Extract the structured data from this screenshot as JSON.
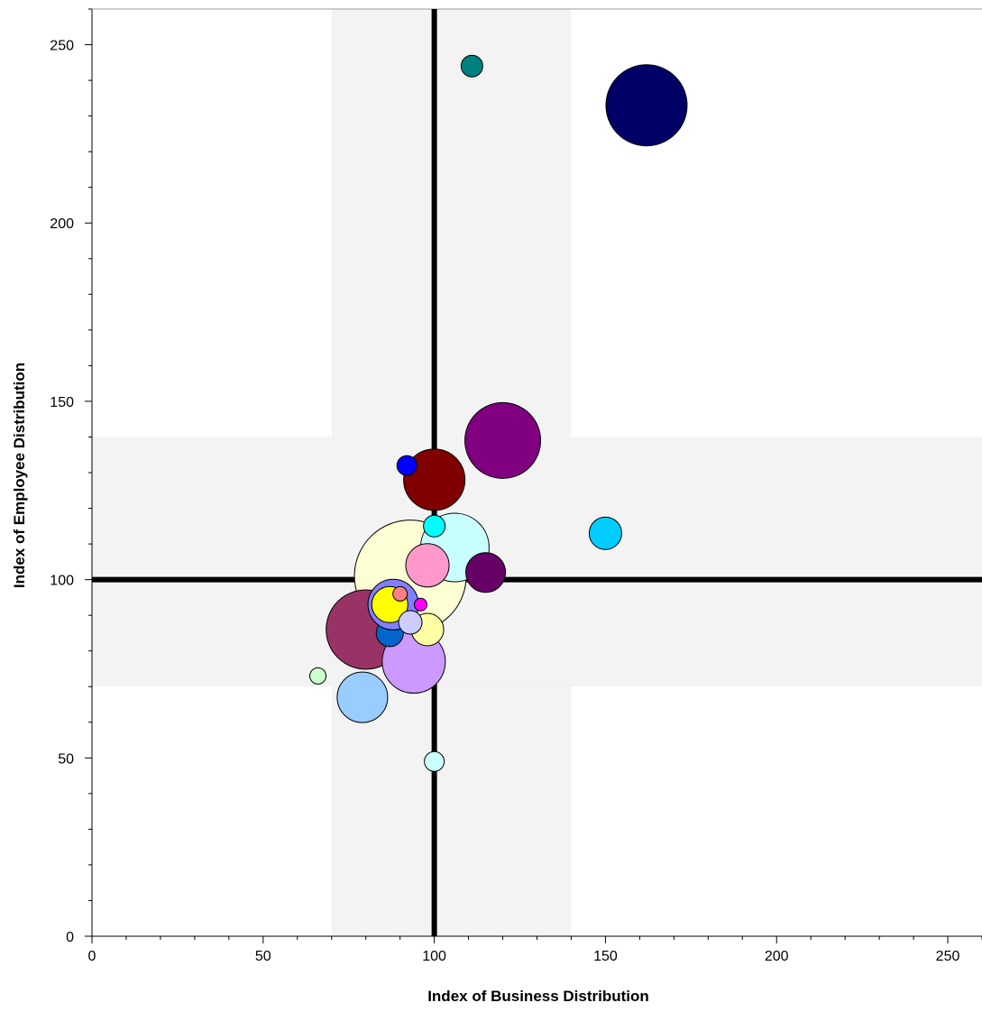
{
  "chart_data": {
    "type": "scatter",
    "variant": "bubble",
    "xlabel": "Index of Business Distribution",
    "ylabel": "Index of Employee Distribution",
    "xlim": [
      0,
      260
    ],
    "ylim": [
      0,
      260
    ],
    "x_ticks": [
      "0",
      "50",
      "100",
      "150",
      "200",
      "250"
    ],
    "y_ticks": [
      "0",
      "50",
      "100",
      "150",
      "200",
      "250"
    ],
    "reference_lines": {
      "x": 100,
      "y": 100
    },
    "shaded_band": {
      "low": 70,
      "high": 140,
      "color": "#f3f3f3"
    },
    "grid": false,
    "points": [
      {
        "x": 162,
        "y": 233,
        "size": 45,
        "color": "#000066"
      },
      {
        "x": 120,
        "y": 139,
        "size": 42,
        "color": "#800080"
      },
      {
        "x": 93,
        "y": 101,
        "size": 62,
        "color": "#fefed4"
      },
      {
        "x": 80,
        "y": 86,
        "size": 44,
        "color": "#993366"
      },
      {
        "x": 106,
        "y": 109,
        "size": 38,
        "color": "#c9fefe"
      },
      {
        "x": 100,
        "y": 128,
        "size": 34,
        "color": "#800000"
      },
      {
        "x": 94,
        "y": 77,
        "size": 35,
        "color": "#cc99ff"
      },
      {
        "x": 79,
        "y": 67,
        "size": 28,
        "color": "#99ccff"
      },
      {
        "x": 115,
        "y": 102,
        "size": 22,
        "color": "#660066"
      },
      {
        "x": 150,
        "y": 113,
        "size": 18,
        "color": "#00ccff"
      },
      {
        "x": 98,
        "y": 104,
        "size": 24,
        "color": "#ff99cc"
      },
      {
        "x": 98,
        "y": 86,
        "size": 18,
        "color": "#fefea3"
      },
      {
        "x": 87,
        "y": 85,
        "size": 15,
        "color": "#0066cc"
      },
      {
        "x": 88,
        "y": 93,
        "size": 28,
        "color": "#8080ff"
      },
      {
        "x": 87,
        "y": 93,
        "size": 20,
        "color": "#ffff00"
      },
      {
        "x": 93,
        "y": 88,
        "size": 13,
        "color": "#ccccff"
      },
      {
        "x": 96,
        "y": 93,
        "size": 7,
        "color": "#ff00ff"
      },
      {
        "x": 90,
        "y": 96,
        "size": 8,
        "color": "#ff8080"
      },
      {
        "x": 111,
        "y": 244,
        "size": 12,
        "color": "#008080"
      },
      {
        "x": 92,
        "y": 132,
        "size": 11,
        "color": "#0000ff"
      },
      {
        "x": 100,
        "y": 115,
        "size": 12,
        "color": "#00ffff"
      },
      {
        "x": 100,
        "y": 49,
        "size": 11,
        "color": "#ccffff"
      },
      {
        "x": 66,
        "y": 73,
        "size": 9,
        "color": "#ccffcc"
      }
    ]
  }
}
